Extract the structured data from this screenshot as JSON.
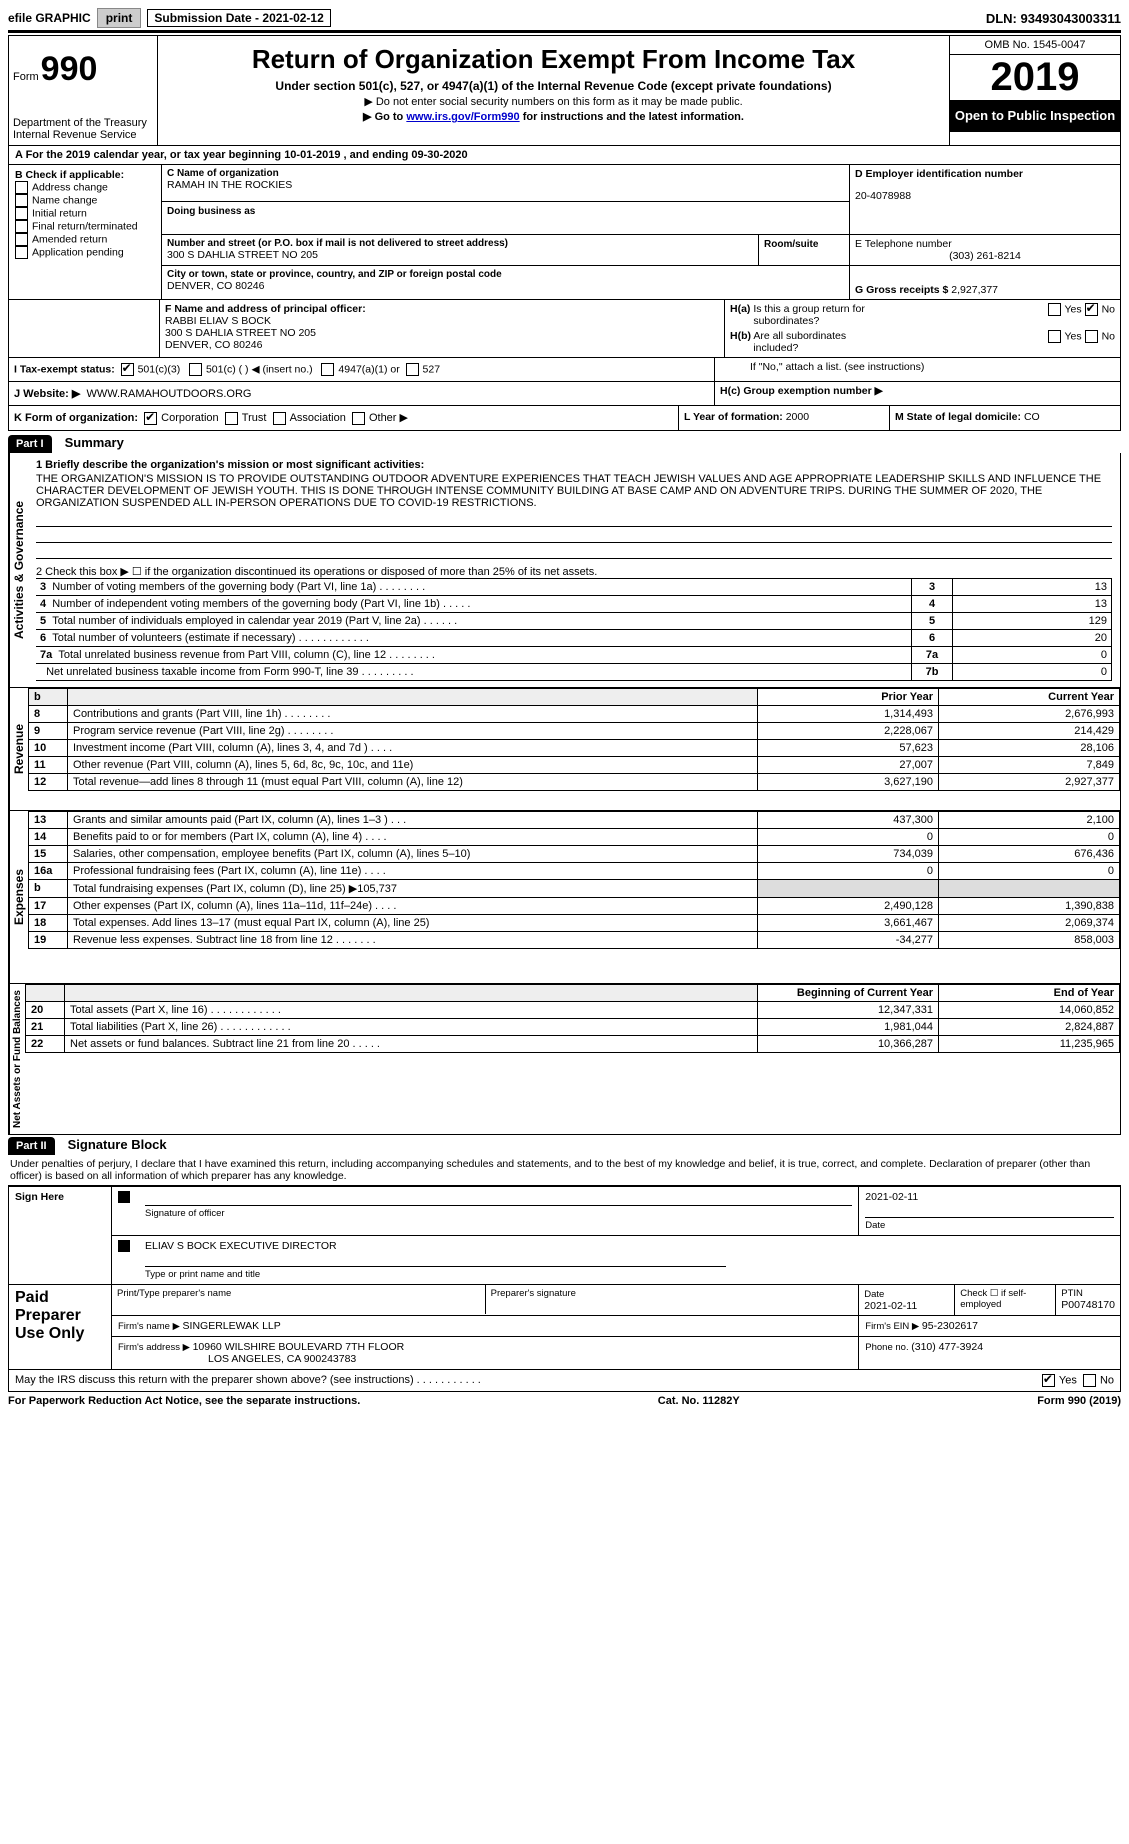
{
  "topbar": {
    "efile": "efile GRAPHIC",
    "print": "print",
    "subdate_lbl": "Submission Date - ",
    "subdate": "2021-02-12",
    "dln_lbl": "DLN: ",
    "dln": "93493043003311"
  },
  "header": {
    "form_prefix": "Form",
    "form_no": "990",
    "dept": "Department of the Treasury\nInternal Revenue Service",
    "title": "Return of Organization Exempt From Income Tax",
    "subtitle": "Under section 501(c), 527, or 4947(a)(1) of the Internal Revenue Code (except private foundations)",
    "note1": "▶ Do not enter social security numbers on this form as it may be made public.",
    "note2_pre": "▶ Go to ",
    "note2_link": "www.irs.gov/Form990",
    "note2_post": " for instructions and the latest information.",
    "omb": "OMB No. 1545-0047",
    "year": "2019",
    "inspection": "Open to Public Inspection"
  },
  "period": "A For the 2019 calendar year, or tax year beginning 10-01-2019     , and ending 09-30-2020",
  "B": {
    "label": "B Check if applicable:",
    "opts": [
      "Address change",
      "Name change",
      "Initial return",
      "Final return/terminated",
      "Amended return",
      "Application pending"
    ]
  },
  "C": {
    "name_lbl": "C Name of organization",
    "name": "RAMAH IN THE ROCKIES",
    "dba_lbl": "Doing business as",
    "addr_lbl": "Number and street (or P.O. box if mail is not delivered to street address)",
    "room_lbl": "Room/suite",
    "addr": "300 S DAHLIA STREET NO 205",
    "city_lbl": "City or town, state or province, country, and ZIP or foreign postal code",
    "city": "DENVER, CO  80246"
  },
  "D": {
    "lbl": "D Employer identification number",
    "val": "20-4078988"
  },
  "E": {
    "lbl": "E Telephone number",
    "val": "(303) 261-8214"
  },
  "G": {
    "lbl": "G Gross receipts $ ",
    "val": "2,927,377"
  },
  "F": {
    "lbl": "F  Name and address of principal officer:",
    "name": "RABBI ELIAV S BOCK",
    "addr1": "300 S DAHLIA STREET NO 205",
    "addr2": "DENVER, CO  80246"
  },
  "H": {
    "a_lbl": "H(a)  Is this a group return for subordinates?",
    "b_lbl": "H(b)  Are all subordinates included?",
    "b_note": "If \"No,\" attach a list. (see instructions)",
    "c_lbl": "H(c)  Group exemption number ▶"
  },
  "I": {
    "lbl": "I   Tax-exempt status:",
    "opts": [
      "501(c)(3)",
      "501(c) (   ) ◀ (insert no.)",
      "4947(a)(1) or",
      "527"
    ]
  },
  "J": {
    "lbl": "J   Website: ▶",
    "val": "WWW.RAMAHOUTDOORS.ORG"
  },
  "K": {
    "lbl": "K Form of organization:",
    "opts": [
      "Corporation",
      "Trust",
      "Association",
      "Other ▶"
    ]
  },
  "L": {
    "lbl": "L Year of formation: ",
    "val": "2000"
  },
  "M": {
    "lbl": "M State of legal domicile: ",
    "val": "CO"
  },
  "part1": {
    "label": "Part I",
    "title": "Summary",
    "mission_lbl": "1   Briefly describe the organization's mission or most significant activities:",
    "mission": "THE ORGANIZATION'S MISSION IS TO PROVIDE OUTSTANDING OUTDOOR ADVENTURE EXPERIENCES THAT TEACH JEWISH VALUES AND AGE APPROPRIATE LEADERSHIP SKILLS AND INFLUENCE THE CHARACTER DEVELOPMENT OF JEWISH YOUTH. THIS IS DONE THROUGH INTENSE COMMUNITY BUILDING AT BASE CAMP AND ON ADVENTURE TRIPS. DURING THE SUMMER OF 2020, THE ORGANIZATION SUSPENDED ALL IN-PERSON OPERATIONS DUE TO COVID-19 RESTRICTIONS.",
    "line2": "2   Check this box ▶ ☐  if the organization discontinued its operations or disposed of more than 25% of its net assets.",
    "gov_rows": [
      {
        "n": "3",
        "d": "Number of voting members of the governing body (Part VI, line 1a)  .    .    .    .    .    .    .    .",
        "c": "3",
        "v": "13"
      },
      {
        "n": "4",
        "d": "Number of independent voting members of the governing body (Part VI, line 1b)   .    .    .    .    .",
        "c": "4",
        "v": "13"
      },
      {
        "n": "5",
        "d": "Total number of individuals employed in calendar year 2019 (Part V, line 2a)   .    .    .    .    .    .",
        "c": "5",
        "v": "129"
      },
      {
        "n": "6",
        "d": "Total number of volunteers (estimate if necessary)    .    .    .    .    .    .    .    .    .    .    .    .",
        "c": "6",
        "v": "20"
      },
      {
        "n": "7a",
        "d": "Total unrelated business revenue from Part VIII, column (C), line 12   .    .    .    .    .    .    .    .",
        "c": "7a",
        "v": "0"
      },
      {
        "n": "",
        "d": "Net unrelated business taxable income from Form 990-T, line 39    .    .    .    .    .    .    .    .    .",
        "c": "7b",
        "v": "0"
      }
    ],
    "py_lbl": "Prior Year",
    "cy_lbl": "Current Year",
    "rev_rows": [
      {
        "n": "8",
        "d": "Contributions and grants (Part VIII, line 1h)   .    .    .    .    .    .    .    .",
        "py": "1,314,493",
        "cy": "2,676,993"
      },
      {
        "n": "9",
        "d": "Program service revenue (Part VIII, line 2g)   .    .    .    .    .    .    .    .",
        "py": "2,228,067",
        "cy": "214,429"
      },
      {
        "n": "10",
        "d": "Investment income (Part VIII, column (A), lines 3, 4, and 7d )   .    .    .    .",
        "py": "57,623",
        "cy": "28,106"
      },
      {
        "n": "11",
        "d": "Other revenue (Part VIII, column (A), lines 5, 6d, 8c, 9c, 10c, and 11e)",
        "py": "27,007",
        "cy": "7,849"
      },
      {
        "n": "12",
        "d": "Total revenue—add lines 8 through 11 (must equal Part VIII, column (A), line 12)",
        "py": "3,627,190",
        "cy": "2,927,377"
      }
    ],
    "exp_rows": [
      {
        "n": "13",
        "d": "Grants and similar amounts paid (Part IX, column (A), lines 1–3 )   .    .    .",
        "py": "437,300",
        "cy": "2,100"
      },
      {
        "n": "14",
        "d": "Benefits paid to or for members (Part IX, column (A), line 4)   .    .    .    .",
        "py": "0",
        "cy": "0"
      },
      {
        "n": "15",
        "d": "Salaries, other compensation, employee benefits (Part IX, column (A), lines 5–10)",
        "py": "734,039",
        "cy": "676,436"
      },
      {
        "n": "16a",
        "d": "Professional fundraising fees (Part IX, column (A), line 11e)   .    .    .    .",
        "py": "0",
        "cy": "0"
      },
      {
        "n": "b",
        "d": "Total fundraising expenses (Part IX, column (D), line 25) ▶105,737",
        "py": "",
        "cy": ""
      },
      {
        "n": "17",
        "d": "Other expenses (Part IX, column (A), lines 11a–11d, 11f–24e)   .    .    .    .",
        "py": "2,490,128",
        "cy": "1,390,838"
      },
      {
        "n": "18",
        "d": "Total expenses. Add lines 13–17 (must equal Part IX, column (A), line 25)",
        "py": "3,661,467",
        "cy": "2,069,374"
      },
      {
        "n": "19",
        "d": "Revenue less expenses. Subtract line 18 from line 12   .    .    .    .    .    .    .",
        "py": "-34,277",
        "cy": "858,003"
      }
    ],
    "boy_lbl": "Beginning of Current Year",
    "eoy_lbl": "End of Year",
    "na_rows": [
      {
        "n": "20",
        "d": "Total assets (Part X, line 16)    .    .    .    .    .    .    .    .    .    .    .    .",
        "py": "12,347,331",
        "cy": "14,060,852"
      },
      {
        "n": "21",
        "d": "Total liabilities (Part X, line 26)    .    .    .    .    .    .    .    .    .    .    .    .",
        "py": "1,981,044",
        "cy": "2,824,887"
      },
      {
        "n": "22",
        "d": "Net assets or fund balances. Subtract line 21 from line 20    .    .    .    .    .",
        "py": "10,366,287",
        "cy": "11,235,965"
      }
    ],
    "vert_gov": "Activities & Governance",
    "vert_rev": "Revenue",
    "vert_exp": "Expenses",
    "vert_na": "Net Assets or Fund Balances"
  },
  "part2": {
    "label": "Part II",
    "title": "Signature Block",
    "perjury": "Under penalties of perjury, I declare that I have examined this return, including accompanying schedules and statements, and to the best of my knowledge and belief, it is true, correct, and complete. Declaration of preparer (other than officer) is based on all information of which preparer has any knowledge.",
    "sign_here": "Sign Here",
    "sig_officer": "Signature of officer",
    "sig_date": "2021-02-11",
    "sig_name": "ELIAV S BOCK  EXECUTIVE DIRECTOR",
    "sig_name_lbl": "Type or print name and title",
    "paid": "Paid Preparer Use Only",
    "prep_name_lbl": "Print/Type preparer's name",
    "prep_sig_lbl": "Preparer's signature",
    "prep_date_lbl": "Date",
    "prep_date": "2021-02-11",
    "prep_self": "Check ☐ if self-employed",
    "ptin_lbl": "PTIN",
    "ptin": "P00748170",
    "firm_name_lbl": "Firm's name    ▶ ",
    "firm_name": "SINGERLEWAK LLP",
    "firm_ein_lbl": "Firm's EIN ▶ ",
    "firm_ein": "95-2302617",
    "firm_addr_lbl": "Firm's address ▶ ",
    "firm_addr1": "10960 WILSHIRE BOULEVARD 7TH FLOOR",
    "firm_addr2": "LOS ANGELES, CA  900243783",
    "firm_phone_lbl": "Phone no. ",
    "firm_phone": "(310) 477-3924",
    "discuss": "May the IRS discuss this return with the preparer shown above? (see instructions)    .    .    .    .    .    .    .    .    .    .    ."
  },
  "footer": {
    "left": "For Paperwork Reduction Act Notice, see the separate instructions.",
    "mid": "Cat. No. 11282Y",
    "right_pre": "Form ",
    "right_bold": "990",
    "right_post": " (2019)"
  }
}
